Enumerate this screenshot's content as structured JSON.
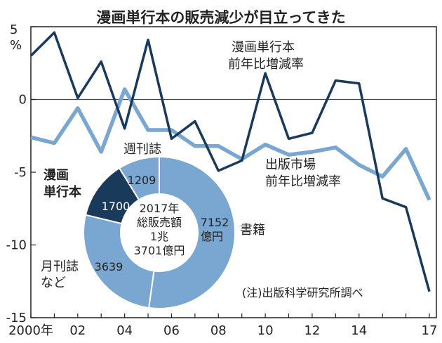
{
  "chart_data": [
    {
      "type": "line",
      "title": "漫画単行本の販売減少が目立ってきた",
      "unit_label": [
        "5",
        "%"
      ],
      "x": [
        2000,
        2001,
        2002,
        2003,
        2004,
        2005,
        2006,
        2007,
        2008,
        2009,
        2010,
        2011,
        2012,
        2013,
        2014,
        2015,
        2016,
        2017
      ],
      "x_tick_labels": [
        "2000年",
        "02",
        "04",
        "06",
        "08",
        "10",
        "12",
        "14",
        "17"
      ],
      "y_ticks": [
        "5",
        "0",
        "-5",
        "-10",
        "-15"
      ],
      "ylim": [
        -15,
        5
      ],
      "grid": false,
      "series": [
        {
          "name": "漫画単行本前年比増減率",
          "label_lines": [
            "漫画単行本",
            "前年比増減率"
          ],
          "color": "#1a3a5c",
          "values": [
            3.0,
            4.6,
            0.1,
            2.6,
            -2.0,
            4.1,
            -2.7,
            -1.5,
            -4.9,
            -4.2,
            1.8,
            -2.7,
            -2.3,
            1.3,
            1.1,
            -6.8,
            -7.4,
            -13.2
          ]
        },
        {
          "name": "出版市場前年比増減率",
          "label_lines": [
            "出版市場",
            "前年比増減率"
          ],
          "color": "#7aa7d2",
          "values": [
            -2.6,
            -3.0,
            -0.6,
            -3.6,
            0.7,
            -2.1,
            -2.1,
            -3.2,
            -3.2,
            -4.1,
            -3.1,
            -3.8,
            -3.6,
            -3.3,
            -4.5,
            -5.3,
            -3.4,
            -6.9
          ]
        }
      ]
    },
    {
      "type": "pie",
      "donut": true,
      "center_text": [
        "2017年",
        "総販売額",
        "1兆",
        "3701億円"
      ],
      "slices": [
        {
          "label": "書籍",
          "value_text": [
            "7152",
            "億円"
          ],
          "value": 7152,
          "color": "#7aa7d2"
        },
        {
          "label": "月刊誌など",
          "label_lines": [
            "月刊誌",
            "など"
          ],
          "value_text": [
            "3639"
          ],
          "value": 3639,
          "color": "#7aa7d2"
        },
        {
          "label": "漫画単行本",
          "label_lines": [
            "漫画",
            "単行本"
          ],
          "value_text": [
            "1700"
          ],
          "value": 1700,
          "color": "#1a3a5c"
        },
        {
          "label": "週刊誌",
          "value_text": [
            "1209"
          ],
          "value": 1209,
          "color": "#7aa7d2"
        }
      ]
    }
  ],
  "note": "(注)出版科学研究所調べ"
}
